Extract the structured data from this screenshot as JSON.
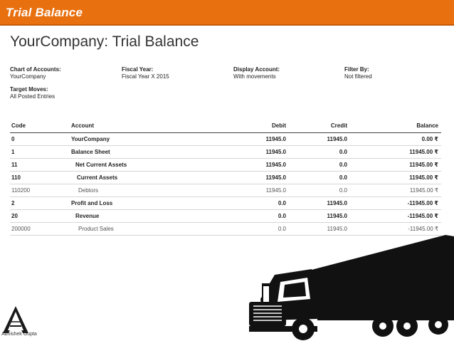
{
  "banner": {
    "title": "Trial Balance"
  },
  "report": {
    "title": "YourCompany: Trial Balance",
    "filters": [
      {
        "label": "Chart of Accounts:",
        "value": "YourCompany"
      },
      {
        "label": "Fiscal Year:",
        "value": "Fiscal Year X 2015"
      },
      {
        "label": "Display Account:",
        "value": "With movements"
      },
      {
        "label": "Filter By:",
        "value": "Not filtered"
      }
    ],
    "target": {
      "label": "Target Moves:",
      "value": "All Posted Entries"
    }
  },
  "table": {
    "headers": {
      "code": "Code",
      "account": "Account",
      "debit": "Debit",
      "credit": "Credit",
      "balance": "Balance"
    },
    "rows": [
      {
        "code": "0",
        "account": "YourCompany",
        "debit": "11945.0",
        "credit": "11945.0",
        "balance": "0.00 ₹",
        "style": "bold"
      },
      {
        "code": "1",
        "account": "Balance Sheet",
        "debit": "11945.0",
        "credit": "0.0",
        "balance": "11945.00 ₹",
        "style": "bold"
      },
      {
        "code": "11",
        "account": "Net Current Assets",
        "debit": "11945.0",
        "credit": "0.0",
        "balance": "11945.00 ₹",
        "style": "bold"
      },
      {
        "code": "110",
        "account": "Current Assets",
        "debit": "11945.0",
        "credit": "0.0",
        "balance": "11945.00 ₹",
        "style": "bold"
      },
      {
        "code": "110200",
        "account": "Debtors",
        "debit": "11945.0",
        "credit": "0.0",
        "balance": "11945.00 ₹",
        "style": "light"
      },
      {
        "code": "2",
        "account": "Profit and Loss",
        "debit": "0.0",
        "credit": "11945.0",
        "balance": "-11945.00 ₹",
        "style": "bold"
      },
      {
        "code": "20",
        "account": "Revenue",
        "debit": "0.0",
        "credit": "11945.0",
        "balance": "-11945.00 ₹",
        "style": "bold"
      },
      {
        "code": "200000",
        "account": "Product Sales",
        "debit": "0.0",
        "credit": "11945.0",
        "balance": "-11945.00 ₹",
        "style": "light"
      }
    ]
  },
  "footer": {
    "author": "Abhishek Gupta",
    "logo_icon": "triangle-logo-icon",
    "illustration": "truck-icon"
  }
}
